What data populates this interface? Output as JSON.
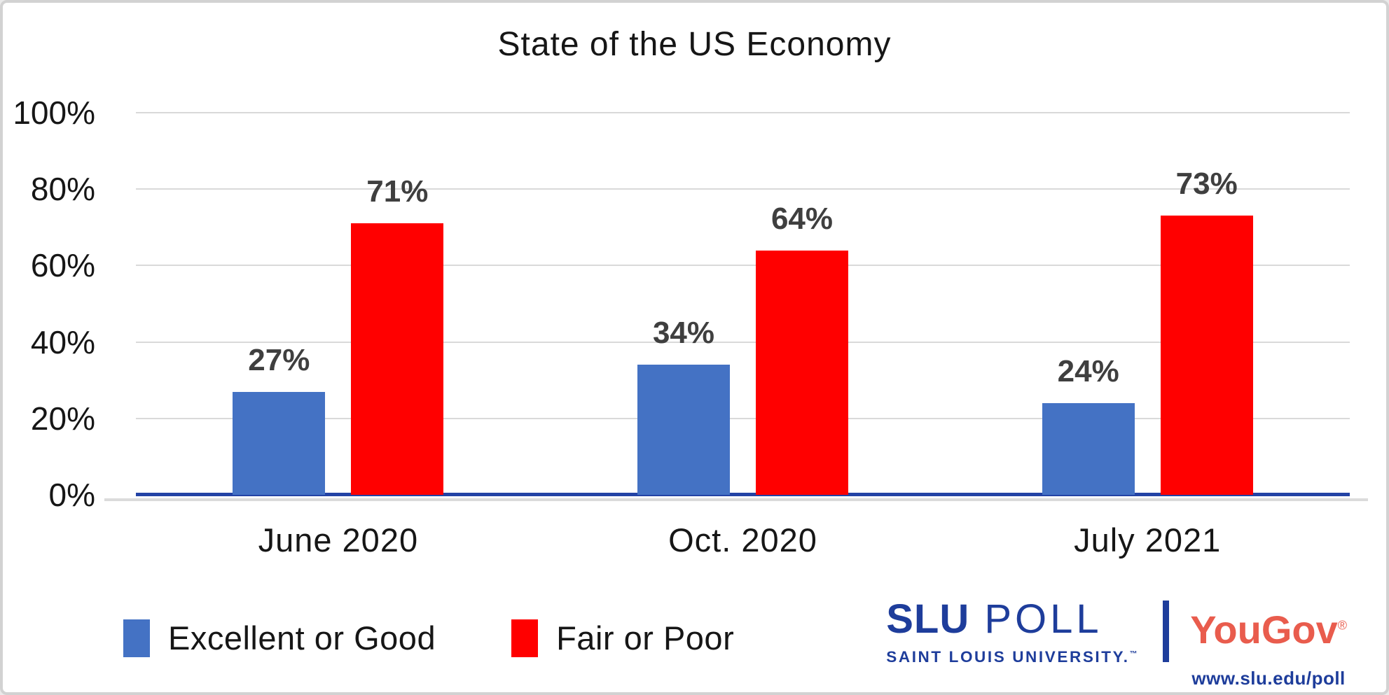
{
  "chart_data": {
    "type": "bar",
    "title": "State of the US Economy",
    "categories": [
      "June 2020",
      "Oct. 2020",
      "July 2021"
    ],
    "series": [
      {
        "name": "Excellent or Good",
        "color": "#4472C4",
        "values": [
          27,
          34,
          24
        ]
      },
      {
        "name": "Fair or Poor",
        "color": "#FF0000",
        "values": [
          71,
          64,
          73
        ]
      }
    ],
    "value_label_suffix": "%",
    "ylabel": "",
    "xlabel": "",
    "ylim": [
      0,
      100
    ],
    "yticks": [
      "100%",
      "80%",
      "60%",
      "40%",
      "20%",
      "0%"
    ],
    "grid": true,
    "gridline_color": "#D9D9D9",
    "axis_line_color": "#2343A5",
    "data_label_color": "#3F3F3F",
    "legend_position": "bottom-left"
  },
  "legend": {
    "items": [
      {
        "label": "Excellent or Good",
        "color": "#4472C4"
      },
      {
        "label": "Fair or Poor",
        "color": "#FF0000"
      }
    ]
  },
  "branding": {
    "slu_bold": "SLU",
    "slu_rest": " POLL",
    "slu_sub": "SAINT LOUIS UNIVERSITY.",
    "slu_trademark": "™",
    "yougov": "YouGov",
    "yougov_registered": "®",
    "url": "www.slu.edu/poll",
    "slu_blue": "#1E3D9B",
    "yougov_red": "#E95C4D"
  }
}
